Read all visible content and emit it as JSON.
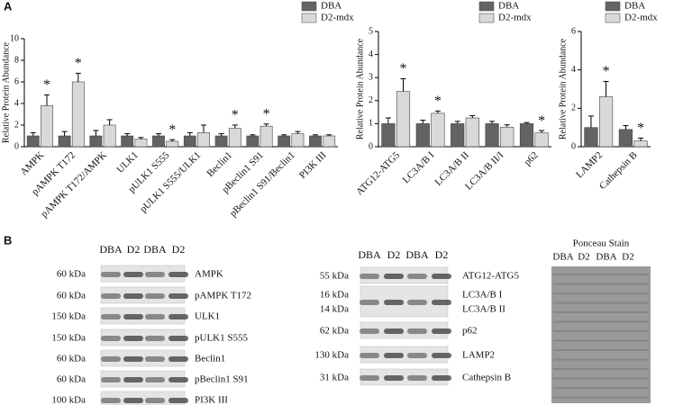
{
  "panels": [
    "A",
    "B"
  ],
  "chart_data": [
    {
      "type": "bar",
      "y_label": "Relative Protein Abundance",
      "categories": [
        "AMPK",
        "pAMPK T172",
        "pAMPK T172/AMPK",
        "ULK1",
        "pULK1 S555",
        "pULK1 S555/ULK1",
        "Beclin1",
        "pBeclin1 S91",
        "pBeclin1 S91/Beclin1",
        "PI3K III"
      ],
      "series": [
        {
          "name": "DBA",
          "color": "#636363",
          "values": [
            1,
            1,
            1,
            1,
            1,
            1,
            1,
            1,
            1,
            1
          ],
          "errors": [
            0.3,
            0.4,
            0.5,
            0.2,
            0.2,
            0.3,
            0.2,
            0.1,
            0.1,
            0.1
          ]
        },
        {
          "name": "D2-mdx",
          "color": "#d9d9d9",
          "values": [
            3.8,
            6.0,
            2.0,
            0.7,
            0.5,
            1.3,
            1.7,
            1.9,
            1.2,
            1.0
          ],
          "errors": [
            1.0,
            0.8,
            0.5,
            0.15,
            0.15,
            0.7,
            0.3,
            0.2,
            0.2,
            0.1
          ],
          "significance": [
            "*",
            "*",
            null,
            null,
            "*",
            null,
            "*",
            "*",
            null,
            null
          ]
        }
      ],
      "ylim": [
        0,
        10
      ],
      "yticks": [
        0,
        2,
        4,
        6,
        8,
        10
      ]
    },
    {
      "type": "bar",
      "y_label": "Relative Protein Abundance",
      "categories": [
        "ATG12-ATG5",
        "LC3A/B I",
        "LC3A/B II",
        "LC3A/B II/I",
        "p62"
      ],
      "series": [
        {
          "name": "DBA",
          "color": "#636363",
          "values": [
            1,
            1,
            1,
            1,
            1
          ],
          "errors": [
            0.25,
            0.15,
            0.1,
            0.1,
            0.05
          ]
        },
        {
          "name": "D2-mdx",
          "color": "#d9d9d9",
          "values": [
            2.4,
            1.45,
            1.25,
            0.85,
            0.6
          ],
          "errors": [
            0.55,
            0.1,
            0.1,
            0.1,
            0.1
          ],
          "significance": [
            "*",
            "*",
            null,
            null,
            "*"
          ]
        }
      ],
      "ylim": [
        0,
        5
      ],
      "yticks": [
        0,
        1,
        2,
        3,
        4,
        5
      ]
    },
    {
      "type": "bar",
      "y_label": "Relative Protein Abundance",
      "categories": [
        "LAMP2",
        "Cathepsin B"
      ],
      "series": [
        {
          "name": "DBA",
          "color": "#636363",
          "values": [
            1.0,
            0.9
          ],
          "errors": [
            0.6,
            0.2
          ]
        },
        {
          "name": "D2-mdx",
          "color": "#d9d9d9",
          "values": [
            2.6,
            0.3
          ],
          "errors": [
            0.8,
            0.15
          ],
          "significance": [
            "*",
            "*"
          ]
        }
      ],
      "ylim": [
        0,
        6
      ],
      "yticks": [
        0,
        2,
        4,
        6
      ]
    }
  ],
  "blots": [
    {
      "lanes": [
        "DBA",
        "D2",
        "DBA",
        "D2"
      ],
      "rows": [
        {
          "kda": [
            "60 kDa"
          ],
          "protein": [
            "AMPK"
          ]
        },
        {
          "kda": [
            "60 kDa"
          ],
          "protein": [
            "pAMPK T172"
          ]
        },
        {
          "kda": [
            "150 kDa"
          ],
          "protein": [
            "ULK1"
          ]
        },
        {
          "kda": [
            "150 kDa"
          ],
          "protein": [
            "pULK1 S555"
          ]
        },
        {
          "kda": [
            "60 kDa"
          ],
          "protein": [
            "Beclin1"
          ]
        },
        {
          "kda": [
            "60 kDa"
          ],
          "protein": [
            "pBeclin1 S91"
          ]
        },
        {
          "kda": [
            "100 kDa"
          ],
          "protein": [
            "PI3K III"
          ]
        }
      ]
    },
    {
      "lanes": [
        "DBA",
        "D2",
        "DBA",
        "D2"
      ],
      "rows": [
        {
          "kda": [
            "55 kDa"
          ],
          "protein": [
            "ATG12-ATG5"
          ]
        },
        {
          "kda": [
            "16 kDa",
            "14 kDa"
          ],
          "protein": [
            "LC3A/B I",
            "LC3A/B II"
          ]
        },
        {
          "kda": [
            "62 kDa"
          ],
          "protein": [
            "p62"
          ]
        },
        {
          "kda": [
            "130 kDa"
          ],
          "protein": [
            "LAMP2"
          ]
        },
        {
          "kda": [
            "31 kDa"
          ],
          "protein": [
            "Cathepsin B"
          ]
        }
      ]
    }
  ],
  "ponceau": {
    "title": "Ponceau Stain",
    "lanes": [
      "DBA",
      "D2",
      "DBA",
      "D2"
    ]
  }
}
